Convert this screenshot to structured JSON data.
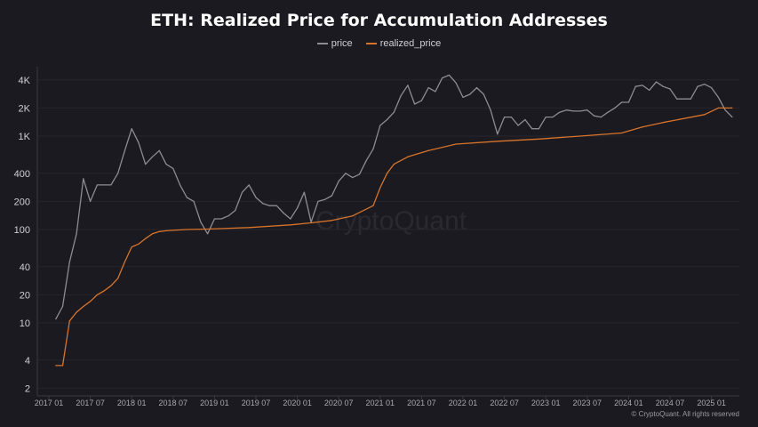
{
  "chart_data": {
    "type": "line",
    "title": "ETH: Realized Price for Accumulation Addresses",
    "watermark": "CryptoQuant",
    "credit": "© CryptoQuant. All rights reserved",
    "y_scale": "log",
    "ylim": [
      2,
      5000
    ],
    "y_ticks": [
      {
        "v": 2,
        "label": "2"
      },
      {
        "v": 4,
        "label": "4"
      },
      {
        "v": 10,
        "label": "10"
      },
      {
        "v": 20,
        "label": "20"
      },
      {
        "v": 40,
        "label": "40"
      },
      {
        "v": 100,
        "label": "100"
      },
      {
        "v": 200,
        "label": "200"
      },
      {
        "v": 400,
        "label": "400"
      },
      {
        "v": 1000,
        "label": "1K"
      },
      {
        "v": 2000,
        "label": "2K"
      },
      {
        "v": 4000,
        "label": "4K"
      }
    ],
    "x_ticks": [
      "2017 01",
      "2017 07",
      "2018 01",
      "2018 07",
      "2019 01",
      "2019 07",
      "2020 01",
      "2020 07",
      "2021 01",
      "2021 07",
      "2022 01",
      "2022 07",
      "2023 01",
      "2023 07",
      "2024 01",
      "2024 07",
      "2025 01"
    ],
    "grid": true,
    "legend_position": "top-center",
    "series": [
      {
        "name": "price",
        "color": "#8c8c92",
        "points": [
          [
            "2017-02",
            11
          ],
          [
            "2017-03",
            15
          ],
          [
            "2017-04",
            45
          ],
          [
            "2017-05",
            90
          ],
          [
            "2017-06",
            350
          ],
          [
            "2017-07",
            200
          ],
          [
            "2017-08",
            300
          ],
          [
            "2017-09",
            300
          ],
          [
            "2017-10",
            300
          ],
          [
            "2017-11",
            400
          ],
          [
            "2017-12",
            700
          ],
          [
            "2018-01",
            1200
          ],
          [
            "2018-02",
            850
          ],
          [
            "2018-03",
            500
          ],
          [
            "2018-04",
            600
          ],
          [
            "2018-05",
            700
          ],
          [
            "2018-06",
            500
          ],
          [
            "2018-07",
            450
          ],
          [
            "2018-08",
            300
          ],
          [
            "2018-09",
            220
          ],
          [
            "2018-10",
            200
          ],
          [
            "2018-11",
            120
          ],
          [
            "2018-12",
            90
          ],
          [
            "2019-01",
            130
          ],
          [
            "2019-02",
            130
          ],
          [
            "2019-03",
            140
          ],
          [
            "2019-04",
            160
          ],
          [
            "2019-05",
            250
          ],
          [
            "2019-06",
            300
          ],
          [
            "2019-07",
            220
          ],
          [
            "2019-08",
            190
          ],
          [
            "2019-09",
            180
          ],
          [
            "2019-10",
            180
          ],
          [
            "2019-11",
            150
          ],
          [
            "2019-12",
            130
          ],
          [
            "2020-01",
            170
          ],
          [
            "2020-02",
            250
          ],
          [
            "2020-03",
            120
          ],
          [
            "2020-04",
            200
          ],
          [
            "2020-05",
            210
          ],
          [
            "2020-06",
            230
          ],
          [
            "2020-07",
            330
          ],
          [
            "2020-08",
            400
          ],
          [
            "2020-09",
            360
          ],
          [
            "2020-10",
            390
          ],
          [
            "2020-11",
            550
          ],
          [
            "2020-12",
            730
          ],
          [
            "2021-01",
            1300
          ],
          [
            "2021-02",
            1500
          ],
          [
            "2021-03",
            1800
          ],
          [
            "2021-04",
            2700
          ],
          [
            "2021-05",
            3500
          ],
          [
            "2021-06",
            2200
          ],
          [
            "2021-07",
            2400
          ],
          [
            "2021-08",
            3300
          ],
          [
            "2021-09",
            3000
          ],
          [
            "2021-10",
            4200
          ],
          [
            "2021-11",
            4500
          ],
          [
            "2021-12",
            3700
          ],
          [
            "2022-01",
            2600
          ],
          [
            "2022-02",
            2800
          ],
          [
            "2022-03",
            3300
          ],
          [
            "2022-04",
            2800
          ],
          [
            "2022-05",
            1900
          ],
          [
            "2022-06",
            1050
          ],
          [
            "2022-07",
            1600
          ],
          [
            "2022-08",
            1600
          ],
          [
            "2022-09",
            1300
          ],
          [
            "2022-10",
            1500
          ],
          [
            "2022-11",
            1200
          ],
          [
            "2022-12",
            1200
          ],
          [
            "2023-01",
            1600
          ],
          [
            "2023-02",
            1600
          ],
          [
            "2023-03",
            1800
          ],
          [
            "2023-04",
            1900
          ],
          [
            "2023-05",
            1850
          ],
          [
            "2023-06",
            1850
          ],
          [
            "2023-07",
            1900
          ],
          [
            "2023-08",
            1650
          ],
          [
            "2023-09",
            1600
          ],
          [
            "2023-10",
            1800
          ],
          [
            "2023-11",
            2000
          ],
          [
            "2023-12",
            2300
          ],
          [
            "2024-01",
            2300
          ],
          [
            "2024-02",
            3400
          ],
          [
            "2024-03",
            3500
          ],
          [
            "2024-04",
            3100
          ],
          [
            "2024-05",
            3800
          ],
          [
            "2024-06",
            3400
          ],
          [
            "2024-07",
            3200
          ],
          [
            "2024-08",
            2500
          ],
          [
            "2024-09",
            2500
          ],
          [
            "2024-10",
            2500
          ],
          [
            "2024-11",
            3400
          ],
          [
            "2024-12",
            3600
          ],
          [
            "2025-01",
            3300
          ],
          [
            "2025-02",
            2600
          ],
          [
            "2025-03",
            1900
          ],
          [
            "2025-04",
            1600
          ]
        ]
      },
      {
        "name": "realized_price",
        "color": "#d8742a",
        "points": [
          [
            "2017-02",
            3.5
          ],
          [
            "2017-03",
            3.5
          ],
          [
            "2017-04",
            10.5
          ],
          [
            "2017-05",
            13
          ],
          [
            "2017-06",
            15
          ],
          [
            "2017-07",
            17
          ],
          [
            "2017-08",
            20
          ],
          [
            "2017-09",
            22
          ],
          [
            "2017-10",
            25
          ],
          [
            "2017-11",
            30
          ],
          [
            "2017-12",
            45
          ],
          [
            "2018-01",
            65
          ],
          [
            "2018-02",
            70
          ],
          [
            "2018-03",
            80
          ],
          [
            "2018-04",
            90
          ],
          [
            "2018-05",
            95
          ],
          [
            "2018-06",
            97
          ],
          [
            "2018-07",
            98
          ],
          [
            "2018-09",
            100
          ],
          [
            "2018-12",
            101
          ],
          [
            "2019-06",
            105
          ],
          [
            "2019-12",
            112
          ],
          [
            "2020-03",
            118
          ],
          [
            "2020-06",
            125
          ],
          [
            "2020-09",
            140
          ],
          [
            "2020-12",
            180
          ],
          [
            "2021-01",
            280
          ],
          [
            "2021-02",
            400
          ],
          [
            "2021-03",
            500
          ],
          [
            "2021-05",
            600
          ],
          [
            "2021-08",
            700
          ],
          [
            "2021-12",
            820
          ],
          [
            "2022-06",
            880
          ],
          [
            "2022-12",
            930
          ],
          [
            "2023-06",
            1000
          ],
          [
            "2023-12",
            1080
          ],
          [
            "2024-03",
            1250
          ],
          [
            "2024-06",
            1400
          ],
          [
            "2024-12",
            1700
          ],
          [
            "2025-02",
            2000
          ],
          [
            "2025-04",
            2000
          ]
        ]
      }
    ]
  }
}
